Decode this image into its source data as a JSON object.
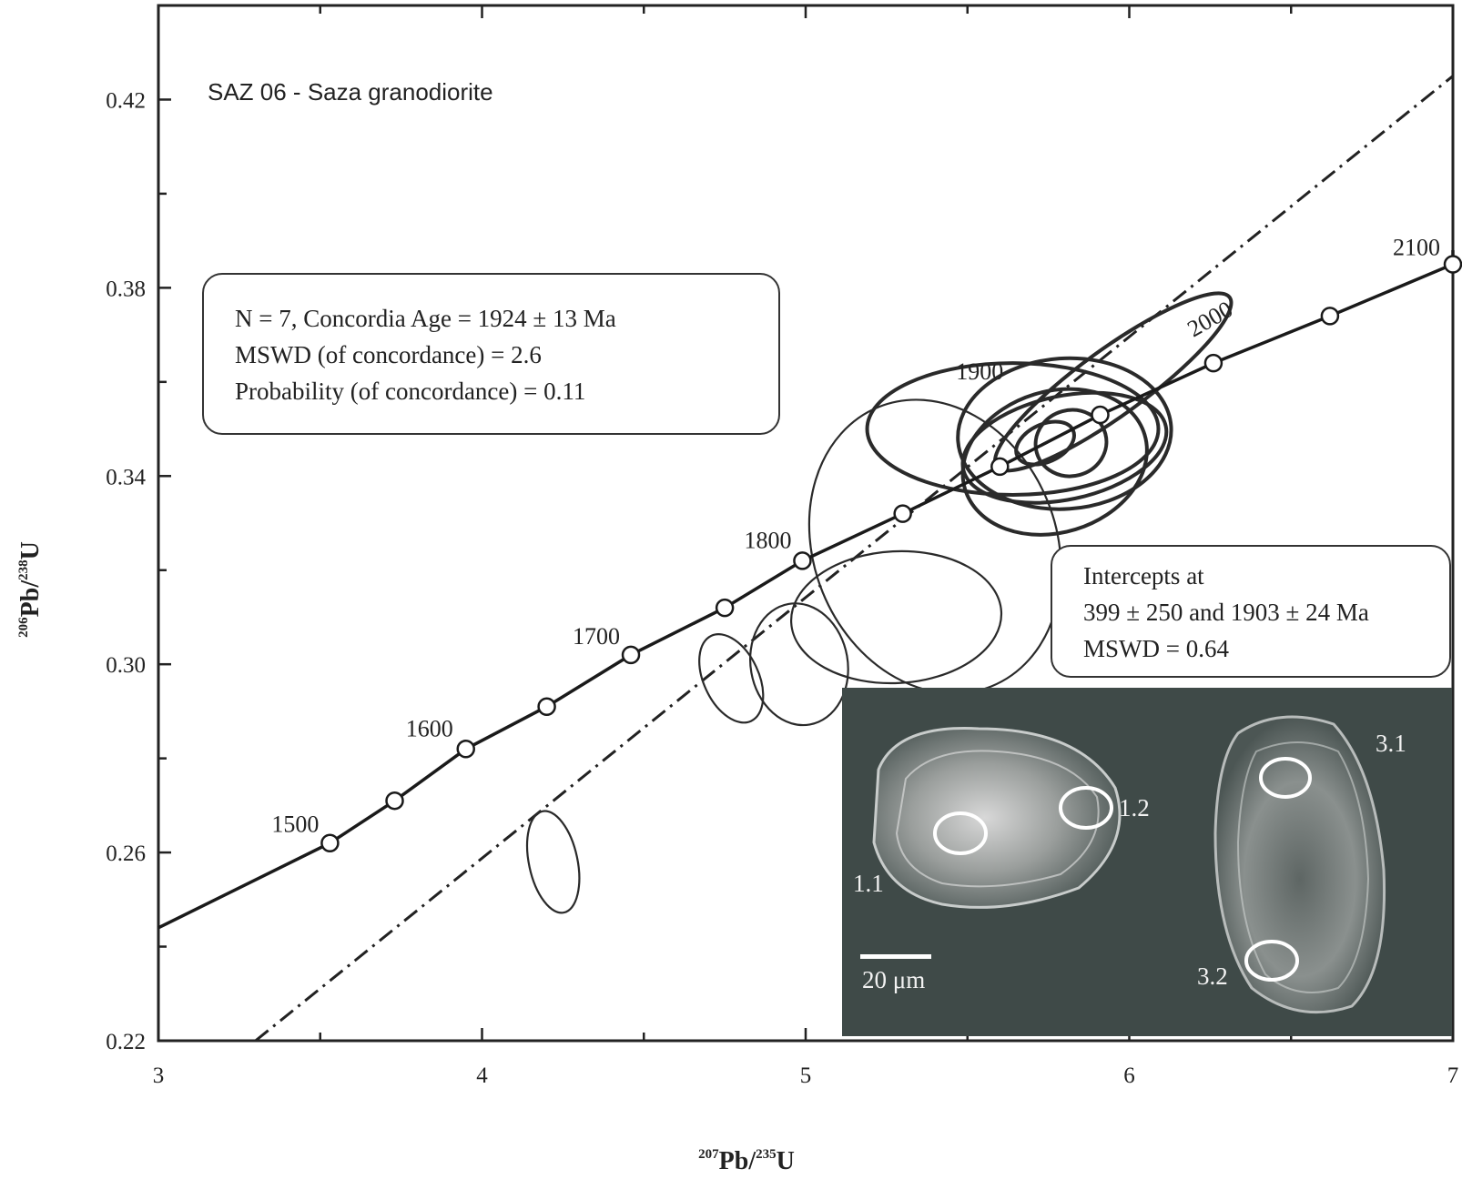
{
  "chart_data": {
    "type": "scatter",
    "title": "SAZ 06 - Saza granodiorite",
    "xlabel": {
      "m1": "207",
      "e1": "Pb/",
      "m2": "235",
      "e2": "U"
    },
    "ylabel": {
      "m1": "206",
      "e1": "Pb/",
      "m2": "238",
      "e2": "U"
    },
    "xlim": [
      3,
      7
    ],
    "ylim": [
      0.22,
      0.44
    ],
    "x_ticks": [
      "3",
      "4",
      "5",
      "6",
      "7"
    ],
    "y_ticks": [
      "0.22",
      "0.26",
      "0.30",
      "0.34",
      "0.38",
      "0.42"
    ],
    "concordia": {
      "points": [
        {
          "age": 1500,
          "x": 3.53,
          "y": 0.262
        },
        {
          "age": 1550,
          "x": 3.73,
          "y": 0.271
        },
        {
          "age": 1600,
          "x": 3.95,
          "y": 0.282
        },
        {
          "age": 1650,
          "x": 4.2,
          "y": 0.291
        },
        {
          "age": 1700,
          "x": 4.46,
          "y": 0.302
        },
        {
          "age": 1750,
          "x": 4.75,
          "y": 0.312
        },
        {
          "age": 1800,
          "x": 4.99,
          "y": 0.322
        },
        {
          "age": 1850,
          "x": 5.3,
          "y": 0.332
        },
        {
          "age": 1900,
          "x": 5.6,
          "y": 0.342
        },
        {
          "age": 1950,
          "x": 5.91,
          "y": 0.353
        },
        {
          "age": 2000,
          "x": 6.26,
          "y": 0.364
        },
        {
          "age": 2050,
          "x": 6.62,
          "y": 0.374
        },
        {
          "age": 2100,
          "x": 7.0,
          "y": 0.385
        }
      ],
      "labels": [
        "1500",
        "1600",
        "1700",
        "1800",
        "1900",
        "2000",
        "2100"
      ]
    },
    "discordia_line": {
      "from": [
        3.3,
        0.22
      ],
      "to": [
        7.0,
        0.425
      ]
    },
    "ellipses_thin": [
      {
        "cx": 5.4,
        "cy": 0.325,
        "rx": 0.75,
        "ry": 0.032,
        "angle": -22
      },
      {
        "cx": 5.28,
        "cy": 0.31,
        "rx": 0.65,
        "ry": 0.014,
        "angle": -3
      },
      {
        "cx": 4.98,
        "cy": 0.3,
        "rx": 0.3,
        "ry": 0.013,
        "angle": -10
      },
      {
        "cx": 4.77,
        "cy": 0.297,
        "rx": 0.17,
        "ry": 0.01,
        "angle": -25
      },
      {
        "cx": 4.22,
        "cy": 0.258,
        "rx": 0.15,
        "ry": 0.011,
        "angle": -12
      }
    ],
    "ellipses_thick": [
      {
        "cx": 5.95,
        "cy": 0.36,
        "rx": 0.89,
        "ry": 0.007,
        "angle": -36
      },
      {
        "cx": 5.64,
        "cy": 0.35,
        "rx": 0.9,
        "ry": 0.014,
        "angle": 0
      },
      {
        "cx": 5.8,
        "cy": 0.349,
        "rx": 0.66,
        "ry": 0.016,
        "angle": -4
      },
      {
        "cx": 5.8,
        "cy": 0.346,
        "rx": 0.64,
        "ry": 0.011,
        "angle": -12
      },
      {
        "cx": 5.77,
        "cy": 0.343,
        "rx": 0.58,
        "ry": 0.015,
        "angle": -17
      },
      {
        "cx": 5.74,
        "cy": 0.347,
        "rx": 0.19,
        "ry": 0.004,
        "angle": -25
      },
      {
        "cx": 5.82,
        "cy": 0.347,
        "rx": 0.22,
        "ry": 0.007,
        "angle": -15
      }
    ],
    "legend": "upper-left, center-right"
  },
  "annotations": {
    "concordia_box": {
      "line1": "N = 7, Concordia Age = 1924 ± 13 Ma",
      "line2": "MSWD (of concordance) = 2.6",
      "line3": "Probability (of concordance) = 0.11"
    },
    "intercepts_box": {
      "line1": "Intercepts at",
      "line2": "399 ± 250 and 1903 ± 24 Ma",
      "line3": "MSWD = 0.64"
    }
  },
  "inset": {
    "spots": [
      "1.1",
      "1.2",
      "3.1",
      "3.2"
    ],
    "scale_bar": "20 μm"
  }
}
